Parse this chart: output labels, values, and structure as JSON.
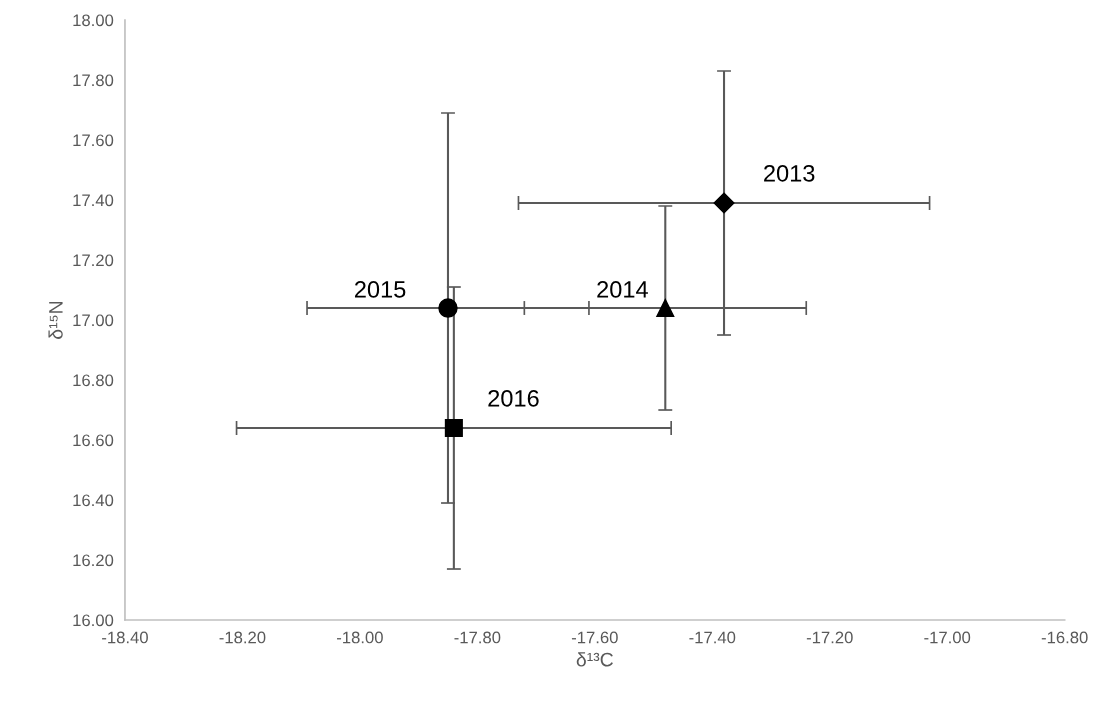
{
  "chart_data": {
    "type": "scatter",
    "xlabel": "δ¹³C",
    "ylabel": "δ¹⁵N",
    "grid": false,
    "legend": false,
    "series": [
      {
        "name": "2013",
        "color": "#000000",
        "marker": "diamond",
        "x": [
          -17.38
        ],
        "values": [
          17.39
        ],
        "errors": [
          0.44
        ],
        "xerrors": [
          0.35
        ]
      },
      {
        "name": "2014",
        "color": "#000000",
        "marker": "triangle",
        "x": [
          -17.48
        ],
        "values": [
          17.04
        ],
        "errors": [
          0.34
        ],
        "xerrors": [
          0.24
        ]
      },
      {
        "name": "2015",
        "color": "#000000",
        "marker": "circle",
        "x": [
          -17.85
        ],
        "values": [
          17.04
        ],
        "errors": [
          0.65
        ],
        "xerrors": [
          0.24
        ]
      },
      {
        "name": "2016",
        "color": "#000000",
        "marker": "square",
        "x": [
          -17.84
        ],
        "values": [
          16.64
        ],
        "errors": [
          0.47
        ],
        "xerrors": [
          0.37
        ]
      }
    ],
    "xlim": [
      -18.4,
      -16.8
    ],
    "xticks": [
      {
        "value": -18.4,
        "label": "-18.40"
      },
      {
        "value": -18.2,
        "label": "-18.20"
      },
      {
        "value": -18.0,
        "label": "-18.00"
      },
      {
        "value": -17.8,
        "label": "-17.80"
      },
      {
        "value": -17.6,
        "label": "-17.60"
      },
      {
        "value": -17.4,
        "label": "-17.40"
      },
      {
        "value": -17.2,
        "label": "-17.20"
      },
      {
        "value": -17.0,
        "label": "-17.00"
      },
      {
        "value": -16.8,
        "label": "-16.80"
      }
    ],
    "ylim": [
      16.0,
      18.0
    ],
    "yticks": [
      {
        "value": 16.0,
        "label": "16.00"
      },
      {
        "value": 16.2,
        "label": "16.20"
      },
      {
        "value": 16.4,
        "label": "16.40"
      },
      {
        "value": 16.6,
        "label": "16.60"
      },
      {
        "value": 16.8,
        "label": "16.80"
      },
      {
        "value": 17.0,
        "label": "17.00"
      },
      {
        "value": 17.2,
        "label": "17.20"
      },
      {
        "value": 17.4,
        "label": "17.40"
      },
      {
        "value": 17.6,
        "label": "17.60"
      },
      {
        "value": 17.8,
        "label": "17.80"
      },
      {
        "value": 18.0,
        "label": "18.00"
      }
    ]
  }
}
